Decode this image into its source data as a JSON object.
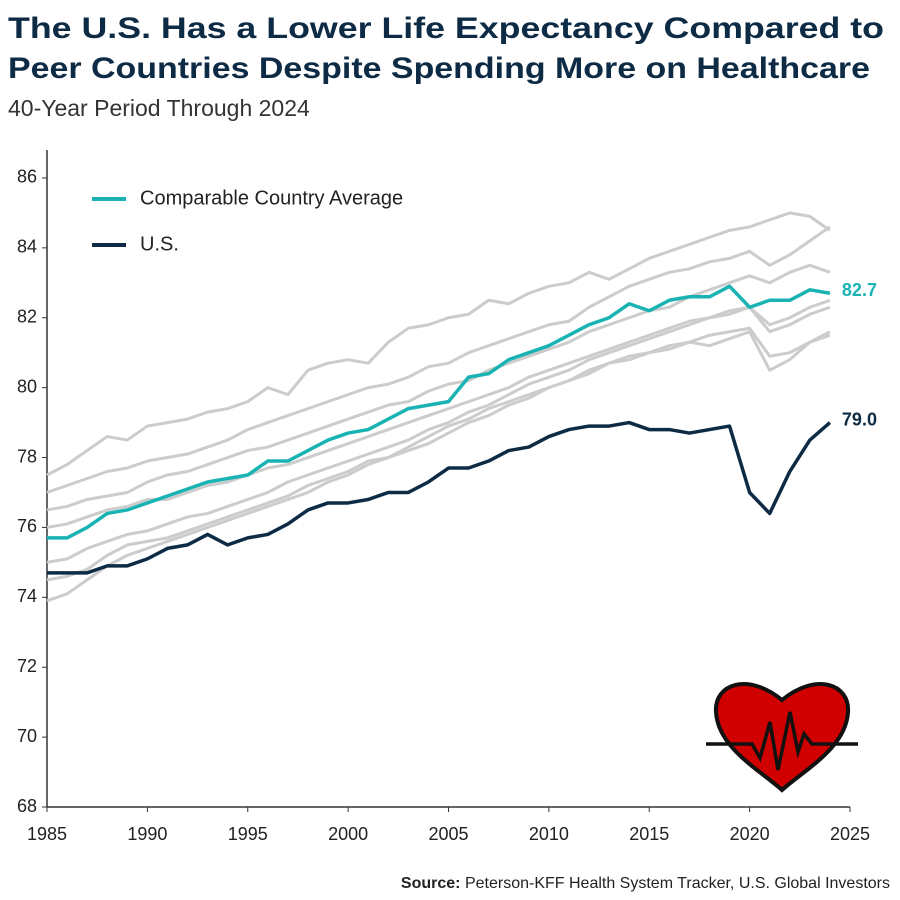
{
  "chart_data": {
    "type": "line",
    "title": [
      "The U.S. Has a Lower Life Expectancy Compared to",
      "Peer Countries Despite Spending More on Healthcare"
    ],
    "subtitle": "40-Year Period Through 2024",
    "source_label": "Source:",
    "source": "Peterson-KFF Health System Tracker, U.S. Global Investors",
    "x": [
      1985,
      1986,
      1987,
      1988,
      1989,
      1990,
      1991,
      1992,
      1993,
      1994,
      1995,
      1996,
      1997,
      1998,
      1999,
      2000,
      2001,
      2002,
      2003,
      2004,
      2005,
      2006,
      2007,
      2008,
      2009,
      2010,
      2011,
      2012,
      2013,
      2014,
      2015,
      2016,
      2017,
      2018,
      2019,
      2020,
      2021,
      2022,
      2023,
      2024
    ],
    "xlim": [
      1985,
      2025
    ],
    "xticks": [
      1985,
      1990,
      1995,
      2000,
      2005,
      2010,
      2015,
      2020,
      2025
    ],
    "ylim": [
      68,
      86.8
    ],
    "yticks": [
      68,
      70,
      72,
      74,
      76,
      78,
      80,
      82,
      84,
      86
    ],
    "legend": "top-left",
    "series": [
      {
        "color": "#cccccc",
        "values": [
          77.5,
          77.8,
          78.2,
          78.6,
          78.5,
          78.9,
          79.0,
          79.1,
          79.3,
          79.4,
          79.6,
          80.0,
          79.8,
          80.5,
          80.7,
          80.8,
          80.7,
          81.3,
          81.7,
          81.8,
          82.0,
          82.1,
          82.5,
          82.4,
          82.7,
          82.9,
          83.0,
          83.3,
          83.1,
          83.4,
          83.7,
          83.9,
          84.1,
          84.3,
          84.5,
          84.6,
          84.8,
          85.0,
          84.9,
          84.5
        ]
      },
      {
        "color": "#cccccc",
        "values": [
          77.0,
          77.2,
          77.4,
          77.6,
          77.7,
          77.9,
          78.0,
          78.1,
          78.3,
          78.5,
          78.8,
          79.0,
          79.2,
          79.4,
          79.6,
          79.8,
          80.0,
          80.1,
          80.3,
          80.6,
          80.7,
          81.0,
          81.2,
          81.4,
          81.6,
          81.8,
          81.9,
          82.3,
          82.6,
          82.9,
          83.1,
          83.3,
          83.4,
          83.6,
          83.7,
          83.9,
          83.5,
          83.8,
          84.2,
          84.6
        ]
      },
      {
        "color": "#cccccc",
        "values": [
          76.5,
          76.6,
          76.8,
          76.9,
          77.0,
          77.3,
          77.5,
          77.6,
          77.8,
          78.0,
          78.2,
          78.3,
          78.5,
          78.7,
          78.9,
          79.1,
          79.3,
          79.5,
          79.6,
          79.9,
          80.1,
          80.2,
          80.5,
          80.7,
          80.9,
          81.1,
          81.3,
          81.6,
          81.8,
          82.0,
          82.2,
          82.3,
          82.6,
          82.8,
          83.0,
          83.2,
          83.0,
          83.3,
          83.5,
          83.3
        ]
      },
      {
        "color": "#cccccc",
        "values": [
          76.0,
          76.1,
          76.3,
          76.5,
          76.6,
          76.8,
          76.8,
          77.0,
          77.2,
          77.3,
          77.5,
          77.7,
          77.8,
          78.0,
          78.2,
          78.4,
          78.6,
          78.8,
          79.0,
          79.2,
          79.4,
          79.6,
          79.8,
          80.0,
          80.3,
          80.5,
          80.7,
          80.9,
          81.1,
          81.3,
          81.5,
          81.7,
          81.9,
          82.0,
          82.1,
          82.3,
          81.8,
          82.0,
          82.3,
          82.5
        ]
      },
      {
        "color": "#cccccc",
        "values": [
          75.0,
          75.1,
          75.4,
          75.6,
          75.8,
          75.9,
          76.1,
          76.3,
          76.4,
          76.6,
          76.8,
          77.0,
          77.3,
          77.5,
          77.7,
          77.9,
          78.1,
          78.3,
          78.5,
          78.8,
          79.0,
          79.3,
          79.5,
          79.8,
          80.1,
          80.3,
          80.5,
          80.8,
          81.0,
          81.2,
          81.4,
          81.6,
          81.8,
          82.0,
          82.2,
          82.3,
          81.6,
          81.8,
          82.1,
          82.3
        ]
      },
      {
        "color": "#cccccc",
        "values": [
          74.5,
          74.6,
          74.8,
          75.2,
          75.5,
          75.6,
          75.7,
          75.9,
          76.1,
          76.3,
          76.5,
          76.7,
          76.9,
          77.2,
          77.4,
          77.6,
          77.9,
          78.0,
          78.2,
          78.4,
          78.7,
          79.0,
          79.2,
          79.5,
          79.7,
          80.0,
          80.2,
          80.4,
          80.7,
          80.9,
          81.0,
          81.2,
          81.3,
          81.5,
          81.6,
          81.7,
          80.9,
          81.0,
          81.3,
          81.5
        ]
      },
      {
        "color": "#cccccc",
        "values": [
          73.9,
          74.1,
          74.5,
          74.9,
          75.2,
          75.4,
          75.6,
          75.8,
          76.0,
          76.2,
          76.4,
          76.6,
          76.8,
          77.0,
          77.3,
          77.5,
          77.8,
          78.0,
          78.3,
          78.6,
          78.9,
          79.1,
          79.4,
          79.6,
          79.8,
          80.0,
          80.2,
          80.5,
          80.7,
          80.8,
          81.0,
          81.1,
          81.3,
          81.2,
          81.4,
          81.6,
          80.5,
          80.8,
          81.3,
          81.6
        ]
      },
      {
        "name": "Comparable Country Average",
        "color": "#1ab3b3",
        "values": [
          75.7,
          75.7,
          76.0,
          76.4,
          76.5,
          76.7,
          76.9,
          77.1,
          77.3,
          77.4,
          77.5,
          77.9,
          77.9,
          78.2,
          78.5,
          78.7,
          78.8,
          79.1,
          79.4,
          79.5,
          79.6,
          80.3,
          80.4,
          80.8,
          81.0,
          81.2,
          81.5,
          81.8,
          82.0,
          82.4,
          82.2,
          82.5,
          82.6,
          82.6,
          82.9,
          82.3,
          82.5,
          82.5,
          82.8,
          82.7
        ]
      },
      {
        "name": "U.S.",
        "color": "#0d2b45",
        "values": [
          74.7,
          74.7,
          74.7,
          74.9,
          74.9,
          75.1,
          75.4,
          75.5,
          75.8,
          75.5,
          75.7,
          75.8,
          76.1,
          76.5,
          76.7,
          76.7,
          76.8,
          77.0,
          77.0,
          77.3,
          77.7,
          77.7,
          77.9,
          78.2,
          78.3,
          78.6,
          78.8,
          78.9,
          78.9,
          79.0,
          78.8,
          78.8,
          78.7,
          78.8,
          78.9,
          77.0,
          76.4,
          77.6,
          78.5,
          79.0
        ],
        "value_labels": [
          null,
          null,
          null,
          null,
          null,
          null,
          null,
          null,
          null,
          null,
          null,
          null,
          null,
          null,
          null,
          null,
          null,
          null,
          null,
          null,
          null,
          null,
          null,
          null,
          null,
          null,
          null,
          null,
          null,
          null,
          null,
          null,
          null,
          null,
          null,
          null,
          null,
          null,
          null,
          "79.0"
        ]
      }
    ]
  }
}
